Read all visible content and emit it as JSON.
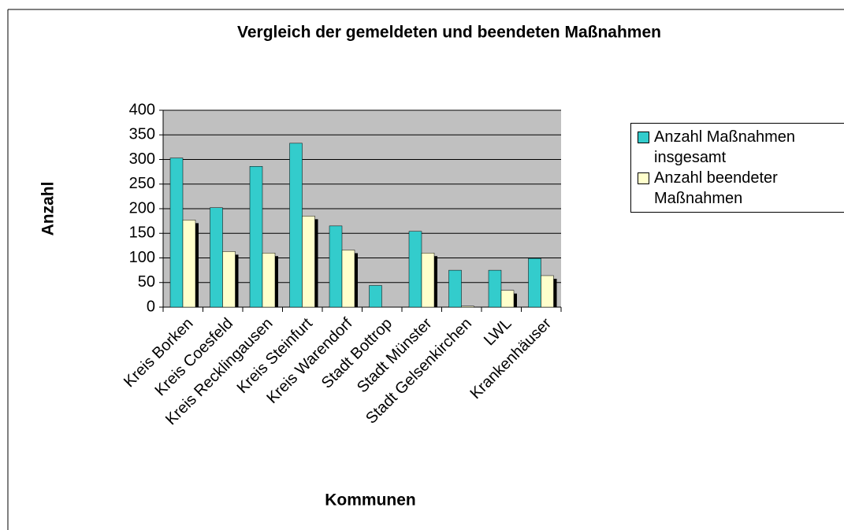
{
  "chart_data": {
    "type": "bar",
    "title": "Vergleich der gemeldeten und beendeten Maßnahmen",
    "x_label": "Kommunen",
    "y_label": "Anzahl",
    "categories": [
      "Kreis Borken",
      "Kreis Coesfeld",
      "Kreis Recklingausen",
      "Kreis Steinfurt",
      "Kreis Warendorf",
      "Stadt Bottrop",
      "Stadt Münster",
      "Stadt Gelsenkirchen",
      "LWL",
      "Krankenhäuser"
    ],
    "series": [
      {
        "name": "Anzahl Maßnahmen insgesamt",
        "color": "#33cccc",
        "values": [
          303,
          202,
          286,
          333,
          165,
          44,
          154,
          75,
          75,
          99
        ]
      },
      {
        "name": "Anzahl beendeter Maßnahmen",
        "color": "#ffffcc",
        "values": [
          177,
          113,
          110,
          185,
          116,
          0,
          110,
          2,
          34,
          64
        ]
      }
    ],
    "ylim": [
      0,
      400
    ],
    "yticks": [
      0,
      50,
      100,
      150,
      200,
      250,
      300,
      350,
      400
    ],
    "grid": true,
    "legend": "right"
  }
}
